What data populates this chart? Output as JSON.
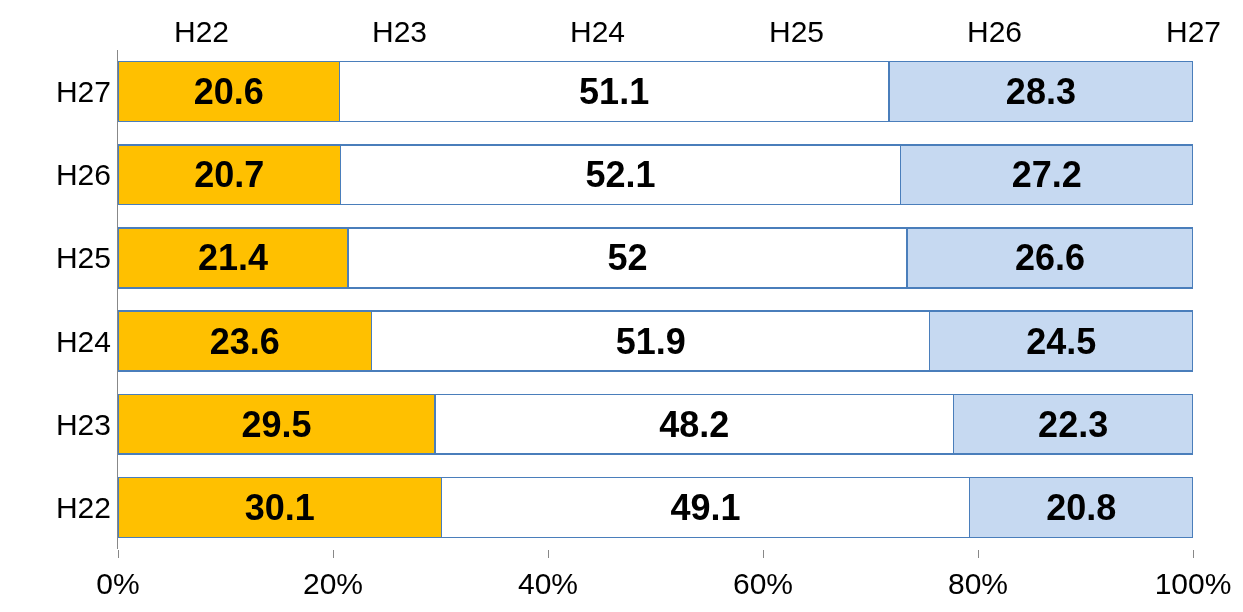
{
  "chart_data": {
    "type": "bar",
    "orientation": "horizontal",
    "stacked": true,
    "data_labels": true,
    "categories": [
      "H27",
      "H26",
      "H25",
      "H24",
      "H23",
      "H22"
    ],
    "series": [
      {
        "color": "#ffc000",
        "values": [
          20.6,
          20.7,
          21.4,
          23.6,
          29.5,
          30.1
        ]
      },
      {
        "color": "#ffffff",
        "values": [
          51.1,
          52.1,
          52,
          51.9,
          48.2,
          49.1
        ]
      },
      {
        "color": "#c6d9f1",
        "values": [
          28.3,
          27.2,
          26.6,
          24.5,
          22.3,
          20.8
        ]
      }
    ],
    "xlim": [
      0,
      100
    ],
    "xticks": [
      {
        "value": 0,
        "label": "0%"
      },
      {
        "value": 20,
        "label": "20%"
      },
      {
        "value": 40,
        "label": "40%"
      },
      {
        "value": 60,
        "label": "60%"
      },
      {
        "value": 80,
        "label": "80%"
      },
      {
        "value": 100,
        "label": "100%"
      }
    ],
    "annotations": [
      "H22",
      "H23",
      "H24",
      "H25",
      "H26",
      "H27"
    ]
  }
}
